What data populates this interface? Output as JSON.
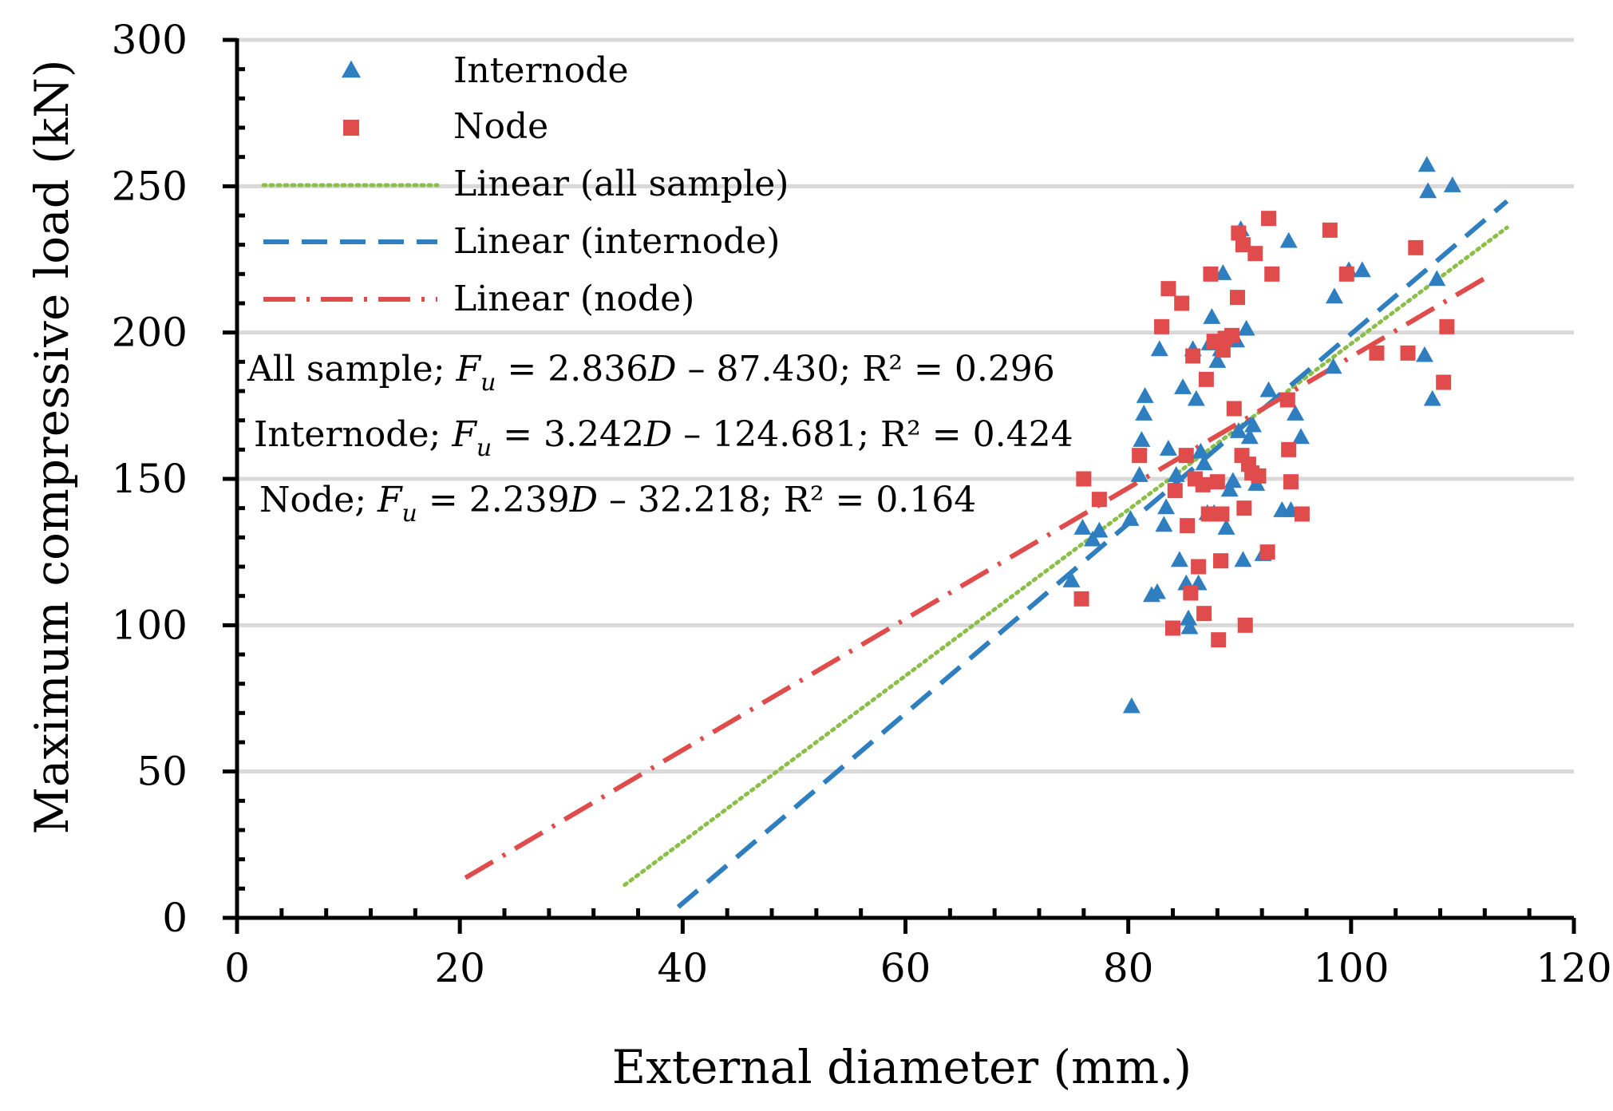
{
  "chart_data": {
    "type": "scatter",
    "xlabel": "External diameter (mm.)",
    "ylabel": "Maximum compressive load (kN)",
    "xlim": [
      0,
      120
    ],
    "ylim": [
      0,
      300
    ],
    "xticks": [
      0,
      20,
      40,
      60,
      80,
      100,
      120
    ],
    "yticks": [
      0,
      50,
      100,
      150,
      200,
      250,
      300
    ],
    "grid": "horizontal",
    "legend_position": "top-left",
    "colors": {
      "internode": "#2E7EC0",
      "node": "#E04B4B",
      "all_sample": "#8CBE4A"
    },
    "series": [
      {
        "name": "Internode",
        "marker": "triangle",
        "points": [
          [
            74.9,
            115
          ],
          [
            75.9,
            133
          ],
          [
            76.8,
            129
          ],
          [
            77.4,
            132
          ],
          [
            80.2,
            136
          ],
          [
            80.3,
            72
          ],
          [
            81.0,
            151
          ],
          [
            81.2,
            163
          ],
          [
            81.4,
            172
          ],
          [
            81.5,
            178
          ],
          [
            82.1,
            110
          ],
          [
            82.6,
            111
          ],
          [
            82.8,
            194
          ],
          [
            83.2,
            134
          ],
          [
            83.4,
            140
          ],
          [
            83.6,
            160
          ],
          [
            84.3,
            151
          ],
          [
            84.6,
            122
          ],
          [
            84.9,
            181
          ],
          [
            85.2,
            114
          ],
          [
            85.4,
            102
          ],
          [
            85.5,
            99
          ],
          [
            85.8,
            194
          ],
          [
            86.1,
            177
          ],
          [
            86.3,
            114
          ],
          [
            86.5,
            159
          ],
          [
            86.8,
            155
          ],
          [
            87.1,
            138
          ],
          [
            87.3,
            196
          ],
          [
            87.5,
            205
          ],
          [
            87.7,
            138
          ],
          [
            88.0,
            190
          ],
          [
            88.3,
            194
          ],
          [
            88.5,
            220
          ],
          [
            88.8,
            133
          ],
          [
            89.1,
            146
          ],
          [
            89.4,
            149
          ],
          [
            89.7,
            197
          ],
          [
            89.9,
            166
          ],
          [
            90.1,
            235
          ],
          [
            90.3,
            122
          ],
          [
            90.6,
            201
          ],
          [
            90.9,
            164
          ],
          [
            91.2,
            168
          ],
          [
            91.5,
            148
          ],
          [
            92.1,
            124
          ],
          [
            92.6,
            180
          ],
          [
            93.8,
            139
          ],
          [
            94.4,
            231
          ],
          [
            94.6,
            139
          ],
          [
            95.0,
            172
          ],
          [
            95.5,
            164
          ],
          [
            98.4,
            188
          ],
          [
            98.5,
            212
          ],
          [
            99.8,
            221
          ],
          [
            101.0,
            221
          ],
          [
            106.6,
            192
          ],
          [
            106.8,
            257
          ],
          [
            106.9,
            248
          ],
          [
            107.3,
            177
          ],
          [
            107.7,
            218
          ],
          [
            109.1,
            250
          ]
        ]
      },
      {
        "name": "Node",
        "marker": "square",
        "points": [
          [
            75.8,
            109
          ],
          [
            76.0,
            150
          ],
          [
            77.4,
            143
          ],
          [
            81.0,
            158
          ],
          [
            83.0,
            202
          ],
          [
            83.6,
            215
          ],
          [
            84.0,
            99
          ],
          [
            84.2,
            146
          ],
          [
            84.8,
            210
          ],
          [
            85.2,
            158
          ],
          [
            85.3,
            134
          ],
          [
            85.6,
            111
          ],
          [
            85.8,
            192
          ],
          [
            86.0,
            150
          ],
          [
            86.3,
            120
          ],
          [
            86.7,
            148
          ],
          [
            86.8,
            104
          ],
          [
            87.0,
            184
          ],
          [
            87.2,
            138
          ],
          [
            87.4,
            220
          ],
          [
            87.7,
            197
          ],
          [
            88.0,
            149
          ],
          [
            88.1,
            95
          ],
          [
            88.3,
            122
          ],
          [
            88.4,
            138
          ],
          [
            88.5,
            194
          ],
          [
            88.7,
            198
          ],
          [
            89.3,
            199
          ],
          [
            89.5,
            174
          ],
          [
            89.8,
            212
          ],
          [
            89.9,
            234
          ],
          [
            90.2,
            158
          ],
          [
            90.3,
            230
          ],
          [
            90.4,
            140
          ],
          [
            90.5,
            100
          ],
          [
            90.8,
            155
          ],
          [
            91.1,
            152
          ],
          [
            91.4,
            227
          ],
          [
            91.7,
            151
          ],
          [
            92.5,
            125
          ],
          [
            92.6,
            239
          ],
          [
            92.9,
            220
          ],
          [
            94.3,
            177
          ],
          [
            94.4,
            160
          ],
          [
            94.6,
            149
          ],
          [
            95.6,
            138
          ],
          [
            98.1,
            235
          ],
          [
            99.6,
            220
          ],
          [
            102.3,
            193
          ],
          [
            105.1,
            193
          ],
          [
            105.8,
            229
          ],
          [
            108.3,
            183
          ],
          [
            108.6,
            202
          ]
        ]
      }
    ],
    "trendlines": [
      {
        "name": "Linear (all sample)",
        "slope": 2.836,
        "intercept": -87.43,
        "x_range": [
          34.8,
          114.0
        ],
        "style": "dotted",
        "series": "all_sample"
      },
      {
        "name": "Linear (internode)",
        "slope": 3.242,
        "intercept": -124.681,
        "x_range": [
          39.6,
          114.0
        ],
        "style": "dashed",
        "series": "internode"
      },
      {
        "name": "Linear (node)",
        "slope": 2.239,
        "intercept": -32.218,
        "x_range": [
          20.5,
          112.0
        ],
        "style": "dash-dot",
        "series": "node"
      }
    ],
    "legend": [
      "Internode",
      "Node",
      "Linear (all sample)",
      "Linear (internode)",
      "Linear (node)"
    ],
    "annotations": {
      "all": {
        "prefix": "All sample; ",
        "var": "F",
        "sub": "u",
        "mid": " = 2.836",
        "d": "D",
        "rest": " – 87.430; R² = 0.296"
      },
      "internode": {
        "prefix": "Internode; ",
        "var": "F",
        "sub": "u",
        "mid": " = 3.242",
        "d": "D",
        "rest": " – 124.681; R² = 0.424"
      },
      "node": {
        "prefix": "Node; ",
        "var": "F",
        "sub": "u",
        "mid": " = 2.239",
        "d": "D",
        "rest": " – 32.218; R² = 0.164"
      }
    }
  }
}
